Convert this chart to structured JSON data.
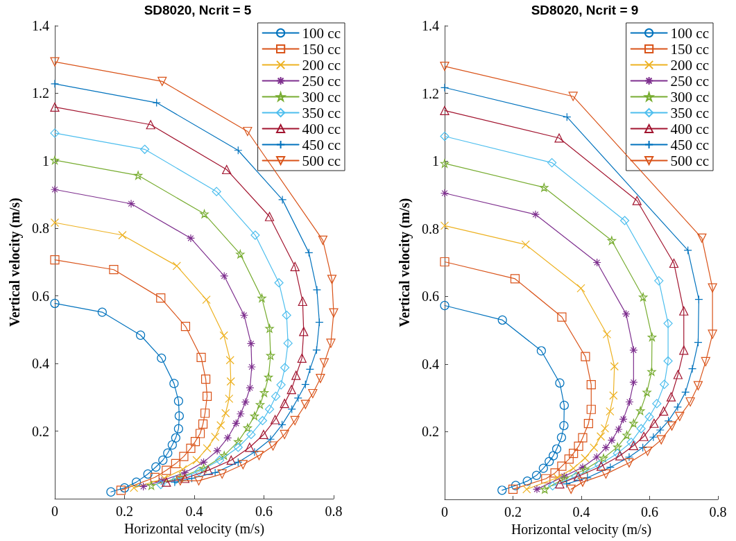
{
  "chart_data": [
    {
      "type": "line",
      "title": "SD8020, Ncrit = 5",
      "xlabel": "Horizontal velocity (m/s)",
      "ylabel": "Vertical velocity (m/s)",
      "xlim": [
        0,
        0.8
      ],
      "ylim": [
        0,
        1.4
      ],
      "xticks": [
        0,
        0.2,
        0.4,
        0.6,
        0.8
      ],
      "yticks": [
        0.2,
        0.4,
        0.6,
        0.8,
        1,
        1.2,
        1.4
      ],
      "grid": false,
      "legend": "top right",
      "line_style": "solid",
      "series": [
        {
          "name": "100 cc",
          "color": "#0072bd",
          "marker": "circle",
          "x": [
            0,
            0.136,
            0.246,
            0.306,
            0.342,
            0.355,
            0.357,
            0.355,
            0.347,
            0.337,
            0.324,
            0.31,
            0.29,
            0.267,
            0.234,
            0.2,
            0.161
          ],
          "values": [
            0.578,
            0.552,
            0.484,
            0.416,
            0.341,
            0.289,
            0.245,
            0.207,
            0.18,
            0.159,
            0.135,
            0.114,
            0.094,
            0.073,
            0.049,
            0.032,
            0.02
          ]
        },
        {
          "name": "150 cc",
          "color": "#d95319",
          "marker": "square",
          "x": [
            0,
            0.169,
            0.304,
            0.375,
            0.42,
            0.433,
            0.437,
            0.431,
            0.425,
            0.417,
            0.403,
            0.39,
            0.37,
            0.347,
            0.32,
            0.287,
            0.19
          ],
          "values": [
            0.707,
            0.678,
            0.594,
            0.51,
            0.418,
            0.354,
            0.303,
            0.253,
            0.221,
            0.193,
            0.169,
            0.149,
            0.125,
            0.104,
            0.084,
            0.063,
            0.025
          ]
        },
        {
          "name": "200 cc",
          "color": "#edb120",
          "marker": "x",
          "x": [
            0,
            0.194,
            0.35,
            0.435,
            0.485,
            0.503,
            0.505,
            0.5,
            0.49,
            0.476,
            0.46,
            0.437,
            0.407,
            0.367,
            0.314,
            0.227
          ],
          "values": [
            0.817,
            0.78,
            0.689,
            0.589,
            0.483,
            0.41,
            0.347,
            0.296,
            0.253,
            0.217,
            0.183,
            0.149,
            0.114,
            0.087,
            0.06,
            0.032
          ]
        },
        {
          "name": "250 cc",
          "color": "#7e2f8e",
          "marker": "cross",
          "x": [
            0,
            0.219,
            0.39,
            0.486,
            0.543,
            0.563,
            0.565,
            0.56,
            0.547,
            0.533,
            0.52,
            0.496,
            0.466,
            0.427,
            0.373,
            0.307,
            0.254
          ],
          "values": [
            0.915,
            0.873,
            0.771,
            0.659,
            0.543,
            0.459,
            0.39,
            0.328,
            0.286,
            0.251,
            0.223,
            0.18,
            0.142,
            0.108,
            0.077,
            0.053,
            0.036
          ]
        },
        {
          "name": "300 cc",
          "color": "#77ac30",
          "marker": "star",
          "x": [
            0,
            0.239,
            0.429,
            0.532,
            0.594,
            0.616,
            0.619,
            0.613,
            0.601,
            0.589,
            0.573,
            0.553,
            0.526,
            0.486,
            0.427,
            0.36,
            0.277
          ],
          "values": [
            1.002,
            0.957,
            0.843,
            0.724,
            0.594,
            0.504,
            0.424,
            0.36,
            0.314,
            0.279,
            0.245,
            0.21,
            0.169,
            0.128,
            0.09,
            0.063,
            0.039
          ]
        },
        {
          "name": "350 cc",
          "color": "#4dbeee",
          "marker": "diamond",
          "x": [
            0,
            0.258,
            0.464,
            0.575,
            0.643,
            0.665,
            0.669,
            0.66,
            0.649,
            0.634,
            0.616,
            0.596,
            0.563,
            0.526,
            0.473,
            0.413,
            0.347,
            0.304
          ],
          "values": [
            1.082,
            1.034,
            0.909,
            0.78,
            0.639,
            0.543,
            0.46,
            0.388,
            0.337,
            0.303,
            0.265,
            0.231,
            0.19,
            0.152,
            0.114,
            0.08,
            0.056,
            0.042
          ]
        },
        {
          "name": "400 cc",
          "color": "#a2142f",
          "marker": "triangle",
          "x": [
            0,
            0.275,
            0.493,
            0.616,
            0.689,
            0.711,
            0.714,
            0.709,
            0.692,
            0.679,
            0.659,
            0.632,
            0.599,
            0.559,
            0.506,
            0.44,
            0.373,
            0.32
          ],
          "values": [
            1.159,
            1.107,
            0.974,
            0.835,
            0.687,
            0.584,
            0.495,
            0.416,
            0.365,
            0.323,
            0.282,
            0.234,
            0.19,
            0.152,
            0.114,
            0.084,
            0.06,
            0.049
          ]
        },
        {
          "name": "450 cc",
          "color": "#0072bd",
          "marker": "plus",
          "x": [
            0,
            0.292,
            0.526,
            0.653,
            0.729,
            0.752,
            0.759,
            0.751,
            0.732,
            0.719,
            0.698,
            0.68,
            0.652,
            0.619,
            0.573,
            0.526,
            0.46,
            0.393,
            0.344
          ],
          "values": [
            1.228,
            1.172,
            1.031,
            0.885,
            0.728,
            0.618,
            0.522,
            0.44,
            0.383,
            0.338,
            0.298,
            0.265,
            0.219,
            0.176,
            0.138,
            0.108,
            0.077,
            0.06,
            0.049
          ]
        },
        {
          "name": "500 cc",
          "color": "#d95319",
          "marker": "triangle-down",
          "x": [
            0,
            0.308,
            0.553,
            0.769,
            0.795,
            0.8,
            0.792,
            0.773,
            0.762,
            0.74,
            0.719,
            0.689,
            0.659,
            0.626,
            0.586,
            0.54,
            0.48,
            0.413,
            0.36
          ],
          "values": [
            1.293,
            1.235,
            1.087,
            0.765,
            0.649,
            0.55,
            0.46,
            0.402,
            0.356,
            0.311,
            0.279,
            0.231,
            0.19,
            0.156,
            0.128,
            0.101,
            0.073,
            0.053,
            0.053
          ]
        }
      ]
    },
    {
      "type": "line",
      "title": "SD8020, Ncrit = 9",
      "xlabel": "Horizontal velocity (m/s)",
      "ylabel": "Vertical velocity (m/s)",
      "xlim": [
        0,
        0.8
      ],
      "ylim": [
        0,
        1.4
      ],
      "xticks": [
        0,
        0.2,
        0.4,
        0.6,
        0.8
      ],
      "yticks": [
        0.2,
        0.4,
        0.6,
        0.8,
        1,
        1.2,
        1.4
      ],
      "grid": false,
      "legend": "top right",
      "line_style": "solid",
      "series": [
        {
          "name": "100 cc",
          "color": "#0072bd",
          "marker": "circle",
          "x": [
            0,
            0.169,
            0.283,
            0.337,
            0.35,
            0.349,
            0.342,
            0.328,
            0.318,
            0.306,
            0.289,
            0.269,
            0.242,
            0.208,
            0.168
          ],
          "values": [
            0.573,
            0.53,
            0.439,
            0.344,
            0.278,
            0.218,
            0.183,
            0.149,
            0.129,
            0.112,
            0.092,
            0.071,
            0.054,
            0.041,
            0.027
          ]
        },
        {
          "name": "150 cc",
          "color": "#d95319",
          "marker": "square",
          "x": [
            0,
            0.206,
            0.343,
            0.412,
            0.429,
            0.429,
            0.421,
            0.404,
            0.392,
            0.377,
            0.364,
            0.343,
            0.323,
            0.296,
            0.2
          ],
          "values": [
            0.702,
            0.652,
            0.539,
            0.422,
            0.339,
            0.266,
            0.224,
            0.182,
            0.157,
            0.136,
            0.119,
            0.098,
            0.078,
            0.061,
            0.03
          ]
        },
        {
          "name": "200 cc",
          "color": "#edb120",
          "marker": "x",
          "x": [
            0,
            0.237,
            0.399,
            0.475,
            0.497,
            0.494,
            0.484,
            0.469,
            0.457,
            0.437,
            0.411,
            0.377,
            0.33,
            0.24
          ],
          "values": [
            0.809,
            0.753,
            0.624,
            0.488,
            0.393,
            0.307,
            0.26,
            0.21,
            0.186,
            0.153,
            0.122,
            0.092,
            0.064,
            0.03
          ]
        },
        {
          "name": "250 cc",
          "color": "#7e2f8e",
          "marker": "cross",
          "x": [
            0,
            0.266,
            0.446,
            0.531,
            0.553,
            0.553,
            0.541,
            0.523,
            0.509,
            0.489,
            0.472,
            0.445,
            0.404,
            0.35,
            0.27
          ],
          "values": [
            0.905,
            0.842,
            0.7,
            0.548,
            0.441,
            0.346,
            0.288,
            0.237,
            0.207,
            0.175,
            0.153,
            0.125,
            0.095,
            0.068,
            0.03
          ]
        },
        {
          "name": "300 cc",
          "color": "#77ac30",
          "marker": "star",
          "x": [
            0,
            0.291,
            0.489,
            0.581,
            0.607,
            0.606,
            0.592,
            0.573,
            0.553,
            0.533,
            0.506,
            0.465,
            0.411,
            0.35,
            0.293
          ],
          "values": [
            0.993,
            0.922,
            0.765,
            0.598,
            0.48,
            0.378,
            0.317,
            0.262,
            0.225,
            0.19,
            0.155,
            0.122,
            0.088,
            0.061,
            0.03
          ]
        },
        {
          "name": "350 cc",
          "color": "#4dbeee",
          "marker": "diamond",
          "x": [
            0,
            0.314,
            0.527,
            0.627,
            0.654,
            0.654,
            0.643,
            0.621,
            0.599,
            0.575,
            0.546,
            0.506,
            0.452,
            0.384,
            0.316
          ],
          "values": [
            1.073,
            0.995,
            0.824,
            0.646,
            0.52,
            0.409,
            0.34,
            0.283,
            0.244,
            0.209,
            0.169,
            0.136,
            0.102,
            0.068,
            0.04
          ]
        },
        {
          "name": "400 cc",
          "color": "#a2142f",
          "marker": "triangle",
          "x": [
            0,
            0.335,
            0.563,
            0.671,
            0.7,
            0.7,
            0.683,
            0.663,
            0.641,
            0.613,
            0.583,
            0.553,
            0.513,
            0.458,
            0.391,
            0.337
          ],
          "values": [
            1.149,
            1.068,
            0.883,
            0.698,
            0.557,
            0.441,
            0.369,
            0.303,
            0.261,
            0.225,
            0.186,
            0.159,
            0.129,
            0.098,
            0.068,
            0.046
          ]
        },
        {
          "name": "450 cc",
          "color": "#0072bd",
          "marker": "plus",
          "x": [
            0,
            0.358,
            0.712,
            0.744,
            0.742,
            0.725,
            0.705,
            0.682,
            0.655,
            0.631,
            0.611,
            0.58,
            0.54,
            0.485,
            0.418,
            0.357
          ],
          "values": [
            1.217,
            1.13,
            0.736,
            0.591,
            0.464,
            0.386,
            0.317,
            0.273,
            0.232,
            0.205,
            0.184,
            0.153,
            0.125,
            0.095,
            0.064,
            0.046
          ]
        },
        {
          "name": "500 cc",
          "color": "#d95319",
          "marker": "triangle-down",
          "x": [
            0,
            0.376,
            0.753,
            0.784,
            0.784,
            0.764,
            0.742,
            0.719,
            0.688,
            0.665,
            0.634,
            0.594,
            0.54,
            0.472,
            0.404,
            0.37
          ],
          "values": [
            1.28,
            1.191,
            0.772,
            0.625,
            0.488,
            0.407,
            0.336,
            0.288,
            0.245,
            0.217,
            0.176,
            0.142,
            0.108,
            0.075,
            0.051,
            0.03
          ]
        }
      ]
    }
  ]
}
